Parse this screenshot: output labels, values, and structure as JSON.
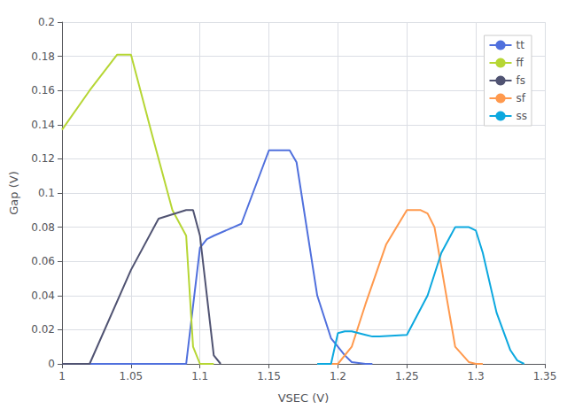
{
  "chart_data": {
    "type": "line",
    "xlabel": "VSEC (V)",
    "ylabel": "Gap (V)",
    "xlim": [
      1.0,
      1.35
    ],
    "ylim": [
      0,
      0.2
    ],
    "xticks": [
      1.0,
      1.05,
      1.1,
      1.15,
      1.2,
      1.25,
      1.3,
      1.35
    ],
    "yticks": [
      0,
      0.02,
      0.04,
      0.06,
      0.08,
      0.1,
      0.12,
      0.14,
      0.16,
      0.18,
      0.2
    ],
    "grid": true,
    "legend": "upper right",
    "series": [
      {
        "name": "tt",
        "x": [
          1.0,
          1.08,
          1.09,
          1.1,
          1.105,
          1.11,
          1.13,
          1.15,
          1.165,
          1.17,
          1.185,
          1.195,
          1.2,
          1.205,
          1.21,
          1.22,
          1.225
        ],
        "values": [
          0.0,
          0.0,
          0.0,
          0.068,
          0.073,
          0.075,
          0.082,
          0.125,
          0.125,
          0.118,
          0.04,
          0.015,
          0.01,
          0.005,
          0.001,
          0.0,
          0.0
        ]
      },
      {
        "name": "ff",
        "x": [
          1.0,
          1.02,
          1.04,
          1.05,
          1.065,
          1.08,
          1.09,
          1.095,
          1.1,
          1.105,
          1.11
        ],
        "values": [
          0.137,
          0.16,
          0.181,
          0.181,
          0.135,
          0.09,
          0.075,
          0.01,
          0.0,
          0.0,
          0.0
        ]
      },
      {
        "name": "fs",
        "x": [
          1.0,
          1.02,
          1.05,
          1.07,
          1.09,
          1.095,
          1.1,
          1.105,
          1.11,
          1.115
        ],
        "values": [
          0.0,
          0.0,
          0.055,
          0.085,
          0.09,
          0.09,
          0.075,
          0.04,
          0.005,
          0.0
        ]
      },
      {
        "name": "sf",
        "x": [
          1.185,
          1.19,
          1.195,
          1.2,
          1.21,
          1.22,
          1.235,
          1.25,
          1.26,
          1.265,
          1.27,
          1.285,
          1.295,
          1.3,
          1.305
        ],
        "values": [
          0.0,
          0.0,
          0.0,
          0.0,
          0.01,
          0.035,
          0.07,
          0.09,
          0.09,
          0.088,
          0.08,
          0.01,
          0.001,
          0.0,
          0.0
        ]
      },
      {
        "name": "ss",
        "x": [
          1.185,
          1.195,
          1.2,
          1.205,
          1.21,
          1.215,
          1.22,
          1.225,
          1.23,
          1.25,
          1.265,
          1.275,
          1.285,
          1.295,
          1.3,
          1.305,
          1.315,
          1.325,
          1.33,
          1.335
        ],
        "values": [
          0.0,
          0.0,
          0.018,
          0.019,
          0.019,
          0.018,
          0.017,
          0.016,
          0.016,
          0.017,
          0.04,
          0.065,
          0.08,
          0.08,
          0.078,
          0.065,
          0.03,
          0.008,
          0.002,
          0.0
        ]
      }
    ]
  }
}
